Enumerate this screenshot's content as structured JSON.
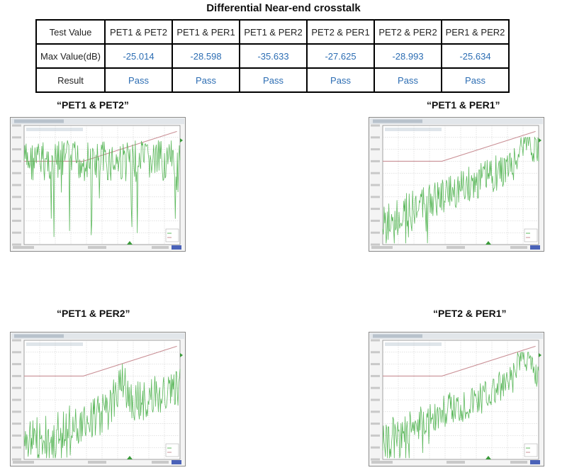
{
  "title": "Differential Near-end crosstalk",
  "table": {
    "header_label": "Test Value",
    "max_label": "Max Value(dB)",
    "result_label": "Result",
    "pairs": [
      "PET1 & PET2",
      "PET1 & PER1",
      "PET1 & PER2",
      "PET2 & PER1",
      "PET2 & PER2",
      "PER1 & PER2"
    ],
    "max_values": [
      "-25.014",
      "-28.598",
      "-35.633",
      "-27.625",
      "-28.993",
      "-25.634"
    ],
    "results": [
      "Pass",
      "Pass",
      "Pass",
      "Pass",
      "Pass",
      "Pass"
    ]
  },
  "plots": [
    {
      "title": "“PET1 & PET2”"
    },
    {
      "title": "“PET1 & PER1”"
    },
    {
      "title": "“PET1 & PER2”"
    },
    {
      "title": "“PET2 & PER1”"
    }
  ],
  "colors": {
    "trace": "#5cb85c",
    "limit": "#c98f95",
    "grid": "#c8c8c8",
    "frame": "#8a8a8a",
    "value_text": "#2c6db3"
  }
}
